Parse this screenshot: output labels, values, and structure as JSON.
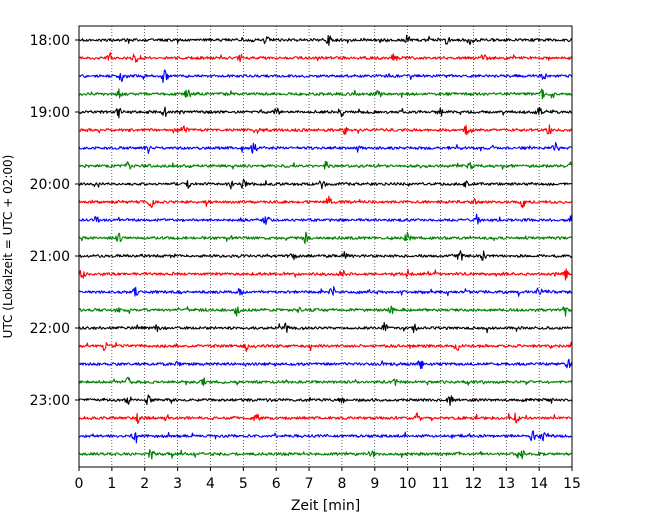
{
  "chart_data": {
    "type": "line",
    "title": "",
    "xlabel": "Zeit  [min]",
    "ylabel": "UTC (Lokalzeit = UTC + 02:00)",
    "x_ticks": [
      0,
      1,
      2,
      3,
      4,
      5,
      6,
      7,
      8,
      9,
      10,
      11,
      12,
      13,
      14,
      15
    ],
    "xlim": [
      0,
      15
    ],
    "y_ticks": [
      "18:00",
      "19:00",
      "20:00",
      "21:00",
      "22:00",
      "23:00"
    ],
    "grid": "vertical dotted at each minute",
    "trace_interval_minutes": 15,
    "color_cycle": [
      "#000000",
      "#ff0000",
      "#0000ff",
      "#008000"
    ],
    "traces": [
      {
        "start": "18:00",
        "color": "#000000",
        "events": [
          5.7,
          7.6,
          10.0,
          11.2,
          11.9
        ]
      },
      {
        "start": "18:15",
        "color": "#ff0000",
        "events": [
          0.9,
          1.7,
          4.9,
          9.6,
          12.3
        ]
      },
      {
        "start": "18:30",
        "color": "#0000ff",
        "events": [
          1.3,
          2.6,
          14.1
        ]
      },
      {
        "start": "18:45",
        "color": "#008000",
        "events": [
          1.2,
          3.3,
          9.1,
          14.1
        ]
      },
      {
        "start": "19:00",
        "color": "#000000",
        "events": [
          1.2,
          2.6,
          6.0,
          8.0,
          11.0,
          14.0
        ]
      },
      {
        "start": "19:15",
        "color": "#ff0000",
        "events": [
          3.2,
          8.1,
          11.8,
          14.3
        ]
      },
      {
        "start": "19:30",
        "color": "#0000ff",
        "events": [
          2.1,
          5.3,
          8.5,
          14.5
        ]
      },
      {
        "start": "19:45",
        "color": "#008000",
        "events": [
          1.5,
          7.5,
          11.9,
          15.0
        ]
      },
      {
        "start": "20:00",
        "color": "#000000",
        "events": [
          3.3,
          4.6,
          5.0,
          7.4,
          11.8
        ]
      },
      {
        "start": "20:15",
        "color": "#ff0000",
        "events": [
          2.2,
          7.6,
          12.0,
          13.5
        ]
      },
      {
        "start": "20:30",
        "color": "#0000ff",
        "events": [
          0.5,
          5.7,
          12.1,
          15.0
        ]
      },
      {
        "start": "20:45",
        "color": "#008000",
        "events": [
          1.2,
          6.9,
          10.0
        ]
      },
      {
        "start": "21:00",
        "color": "#000000",
        "events": [
          6.5,
          8.1,
          11.6,
          12.3
        ]
      },
      {
        "start": "21:15",
        "color": "#ff0000",
        "events": [
          0.1,
          8.0,
          10.0,
          14.8
        ]
      },
      {
        "start": "21:30",
        "color": "#0000ff",
        "events": [
          1.7,
          4.9,
          7.7,
          14.0
        ]
      },
      {
        "start": "21:45",
        "color": "#008000",
        "events": [
          1.2,
          4.8,
          9.5,
          14.8
        ]
      },
      {
        "start": "22:00",
        "color": "#000000",
        "events": [
          2.4,
          6.3,
          9.3,
          10.2
        ]
      },
      {
        "start": "22:15",
        "color": "#ff0000",
        "events": [
          0.8,
          5.1,
          11.5
        ]
      },
      {
        "start": "22:30",
        "color": "#0000ff",
        "events": [
          3.0,
          10.4,
          14.9
        ]
      },
      {
        "start": "22:45",
        "color": "#008000",
        "events": [
          1.5,
          3.8,
          9.6
        ]
      },
      {
        "start": "23:00",
        "color": "#000000",
        "events": [
          1.5,
          2.1,
          8.0,
          11.3
        ]
      },
      {
        "start": "23:15",
        "color": "#ff0000",
        "events": [
          1.8,
          5.4,
          10.3,
          13.3
        ]
      },
      {
        "start": "23:30",
        "color": "#0000ff",
        "events": [
          1.7,
          13.8,
          14.1
        ]
      },
      {
        "start": "23:45",
        "color": "#008000",
        "events": [
          2.2,
          8.9,
          13.5
        ]
      }
    ]
  }
}
